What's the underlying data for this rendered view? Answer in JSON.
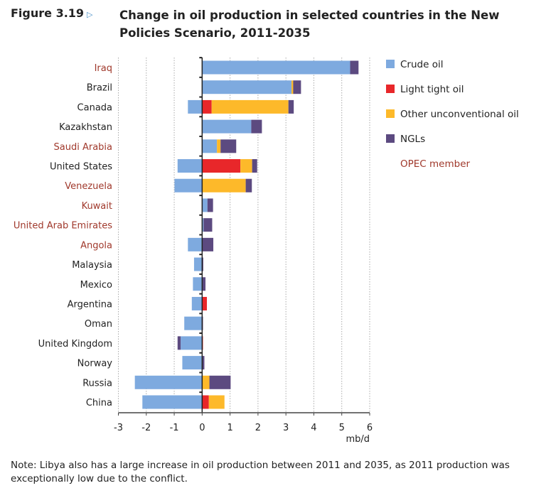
{
  "figure_label": "Figure 3.19",
  "title": "Change in oil production in selected countries in the New Policies Scenario, 2011-2035",
  "note": "Note: Libya also has a large increase in oil production between 2011 and 2035, as 2011 production was exceptionally low due to the conflict.",
  "chart_data": {
    "type": "bar",
    "orientation": "horizontal",
    "stacked": true,
    "title": "Change in oil production in selected countries in the New Policies Scenario, 2011-2035",
    "xlabel": "mb/d",
    "xlim": [
      -3,
      6
    ],
    "xticks": [
      "-3",
      "-2",
      "-1",
      "0",
      "1",
      "2",
      "3",
      "4",
      "5",
      "6"
    ],
    "grid": "vertical dotted",
    "legend_placement": "right",
    "categories": [
      "Iraq",
      "Brazil",
      "Canada",
      "Kazakhstan",
      "Saudi Arabia",
      "United States",
      "Venezuela",
      "Kuwait",
      "United Arab Emirates",
      "Angola",
      "Malaysia",
      "Mexico",
      "Argentina",
      "Oman",
      "United Kingdom",
      "Norway",
      "Russia",
      "China"
    ],
    "opec": [
      true,
      false,
      false,
      false,
      true,
      false,
      true,
      true,
      true,
      true,
      false,
      false,
      false,
      false,
      false,
      false,
      false,
      false
    ],
    "series": [
      {
        "name": "Crude oil",
        "color": "#7eaadf",
        "values": [
          5.3,
          3.2,
          -0.51,
          1.76,
          0.53,
          -0.88,
          -0.99,
          0.19,
          0.05,
          -0.51,
          -0.29,
          -0.33,
          -0.37,
          -0.64,
          -0.77,
          -0.71,
          -2.41,
          -2.14
        ]
      },
      {
        "name": "Light tight oil",
        "color": "#e8272a",
        "values": [
          0,
          0,
          0.34,
          0,
          0,
          1.37,
          0,
          0,
          0,
          0,
          0,
          0,
          0.17,
          0,
          0.03,
          0,
          0,
          0.24
        ]
      },
      {
        "name": "Other unconventional oil",
        "color": "#fdb92a",
        "values": [
          0,
          0.06,
          2.75,
          0,
          0.13,
          0.42,
          1.56,
          0,
          0,
          0,
          0,
          0,
          0,
          0,
          0,
          0,
          0.26,
          0.56
        ]
      },
      {
        "name": "NGLs",
        "color": "#5c4a80",
        "values": [
          0.3,
          0.28,
          0.19,
          0.38,
          0.56,
          0.18,
          0.22,
          0.2,
          0.31,
          0.4,
          0.04,
          0.12,
          0,
          0.03,
          -0.11,
          0.08,
          0.76,
          0
        ]
      }
    ],
    "opec_legend": {
      "name": "OPEC member",
      "color": "#a0392c"
    }
  }
}
